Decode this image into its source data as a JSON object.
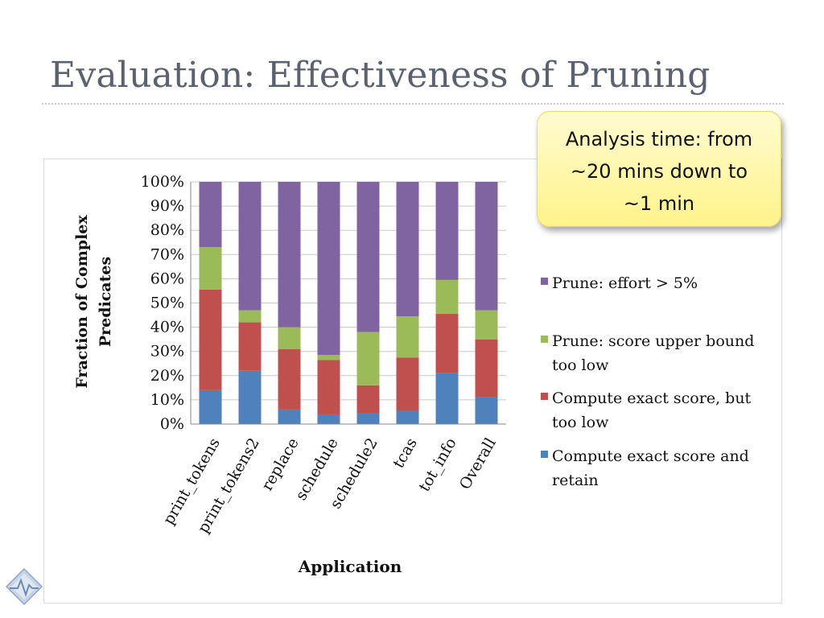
{
  "slide": {
    "title": "Evaluation: Effectiveness of Pruning",
    "callout": [
      "Analysis time: from",
      "~20 mins down to",
      "~1 min"
    ],
    "accent_color": "#5a6270"
  },
  "chart_data": {
    "type": "bar",
    "stacked": "percent",
    "categories": [
      "print_tokens",
      "print_tokens2",
      "replace",
      "schedule",
      "schedule2",
      "tcas",
      "tot_info",
      "Overall"
    ],
    "series": [
      {
        "name": "Compute exact score and retain",
        "color": "#4f81bd",
        "values": [
          14,
          22,
          6,
          4,
          4.5,
          5.5,
          21,
          11
        ]
      },
      {
        "name": "Compute exact score, but too low",
        "color": "#c0504d",
        "values": [
          41.5,
          20,
          25,
          22.5,
          11.5,
          22,
          24.5,
          24
        ]
      },
      {
        "name": "Prune: score upper bound too low",
        "color": "#9bbb59",
        "values": [
          17.5,
          5,
          9,
          2,
          22,
          17,
          14,
          12
        ]
      },
      {
        "name": "Prune: effort > 5%",
        "color": "#8064a2",
        "values": [
          27,
          53,
          60,
          71.5,
          62,
          55.5,
          40.5,
          53
        ]
      }
    ],
    "legend": {
      "position": "right",
      "entries": [
        {
          "series": 3,
          "lines": [
            "Prune: effort > 5%"
          ]
        },
        {
          "series": 2,
          "lines": [
            "Prune: score upper bound",
            "too low"
          ]
        },
        {
          "series": 1,
          "lines": [
            "Compute exact score, but",
            "too low"
          ]
        },
        {
          "series": 0,
          "lines": [
            "Compute exact score and",
            "retain"
          ]
        }
      ]
    },
    "yticks": [
      "0%",
      "10%",
      "20%",
      "30%",
      "40%",
      "50%",
      "60%",
      "70%",
      "80%",
      "90%",
      "100%"
    ],
    "ylim": [
      0,
      100
    ],
    "ylabel": [
      "Fraction of Complex",
      "Predicates"
    ],
    "xlabel": "Application",
    "grid": true
  }
}
